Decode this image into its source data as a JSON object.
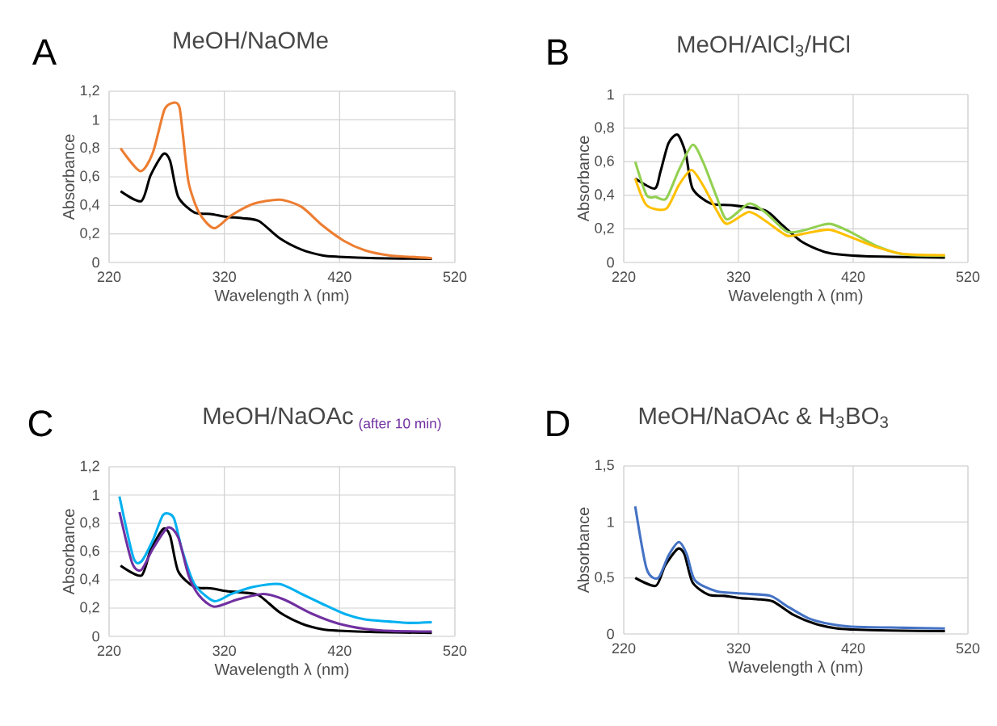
{
  "chart_data": [
    {
      "type": "line",
      "title": "MeOH/NaOMe",
      "annotations": [
        "A"
      ],
      "xlabel": "Wavelength λ (nm)",
      "ylabel": "Absorbance",
      "xlim": [
        220,
        520
      ],
      "xticks": [
        220,
        320,
        420,
        520
      ],
      "ylim": [
        0,
        1.2
      ],
      "yticks": [
        0,
        {
          "value": 0.2,
          "label": "0,2"
        },
        {
          "value": 0.4,
          "label": "0,4"
        },
        {
          "value": 0.6,
          "label": "0,6"
        },
        {
          "value": 0.8,
          "label": "0,8"
        },
        1,
        {
          "value": 1.2,
          "label": "1,2"
        }
      ],
      "grid": true,
      "series": [
        {
          "color": "#000000",
          "x": [
            230,
            248,
            256,
            267,
            273,
            280,
            294,
            308,
            322,
            336,
            350,
            368,
            387,
            405,
            419,
            452,
            500
          ],
          "values": [
            0.5,
            0.43,
            0.61,
            0.76,
            0.71,
            0.46,
            0.35,
            0.34,
            0.32,
            0.31,
            0.29,
            0.17,
            0.09,
            0.05,
            0.04,
            0.03,
            0.025
          ]
        },
        {
          "color": "#ed7d31",
          "x": [
            230,
            247,
            258,
            268,
            276,
            281,
            284,
            289,
            298,
            311,
            326,
            345,
            368,
            387,
            405,
            424,
            442,
            463,
            500
          ],
          "values": [
            0.8,
            0.64,
            0.77,
            1.07,
            1.12,
            1.09,
            0.9,
            0.56,
            0.35,
            0.24,
            0.33,
            0.41,
            0.44,
            0.39,
            0.26,
            0.15,
            0.085,
            0.05,
            0.03
          ]
        }
      ]
    },
    {
      "type": "line",
      "title": "MeOH/AlCl$_{3}$/HCl",
      "annotations": [
        "B"
      ],
      "xlabel": "Wavelength λ (nm)",
      "ylabel": "Absorbance",
      "xlim": [
        220,
        520
      ],
      "xticks": [
        220,
        320,
        420,
        520
      ],
      "ylim": [
        0,
        1
      ],
      "yticks": [
        0,
        {
          "value": 0.2,
          "label": "0,2"
        },
        {
          "value": 0.4,
          "label": "0,4"
        },
        {
          "value": 0.6,
          "label": "0,6"
        },
        {
          "value": 0.8,
          "label": "0,8"
        },
        1
      ],
      "grid": true,
      "series": [
        {
          "color": "#000000",
          "x": [
            230,
            247,
            252,
            259,
            267,
            274,
            280,
            296,
            315,
            343,
            357,
            376,
            399,
            430,
            500
          ],
          "values": [
            0.5,
            0.44,
            0.54,
            0.71,
            0.76,
            0.65,
            0.44,
            0.35,
            0.34,
            0.31,
            0.23,
            0.12,
            0.056,
            0.037,
            0.029
          ]
        },
        {
          "color": "#92d050",
          "x": [
            230,
            240,
            248,
            257,
            268,
            280,
            289,
            301,
            310,
            329,
            343,
            362,
            376,
            399,
            418,
            441,
            464,
            500
          ],
          "values": [
            0.6,
            0.4,
            0.39,
            0.38,
            0.55,
            0.7,
            0.6,
            0.39,
            0.256,
            0.35,
            0.3,
            0.184,
            0.19,
            0.23,
            0.18,
            0.096,
            0.048,
            0.04
          ]
        },
        {
          "color": "#ffc000",
          "x": [
            230,
            240,
            257,
            268,
            279,
            289,
            301,
            310,
            329,
            343,
            362,
            376,
            399,
            418,
            441,
            464,
            500
          ],
          "values": [
            0.5,
            0.34,
            0.32,
            0.46,
            0.55,
            0.46,
            0.31,
            0.23,
            0.3,
            0.25,
            0.16,
            0.17,
            0.195,
            0.15,
            0.09,
            0.05,
            0.043
          ]
        }
      ]
    },
    {
      "type": "line",
      "title": "MeOH/NaOAc",
      "subtitle": "(after 10 min)",
      "annotations": [
        "C"
      ],
      "xlabel": "Wavelength λ (nm)",
      "ylabel": "Absorbance",
      "xlim": [
        220,
        520
      ],
      "xticks": [
        220,
        320,
        420,
        520
      ],
      "ylim": [
        0,
        1.2
      ],
      "yticks": [
        0,
        {
          "value": 0.2,
          "label": "0,2"
        },
        {
          "value": 0.4,
          "label": "0,4"
        },
        {
          "value": 0.6,
          "label": "0,6"
        },
        {
          "value": 0.8,
          "label": "0,8"
        },
        1,
        {
          "value": 1.2,
          "label": "1,2"
        }
      ],
      "grid": true,
      "series": [
        {
          "color": "#000000",
          "x": [
            230,
            248,
            256,
            267,
            273,
            280,
            294,
            308,
            322,
            336,
            350,
            368,
            387,
            405,
            419,
            452,
            500
          ],
          "values": [
            0.5,
            0.43,
            0.61,
            0.76,
            0.71,
            0.46,
            0.35,
            0.34,
            0.32,
            0.31,
            0.29,
            0.17,
            0.09,
            0.05,
            0.04,
            0.03,
            0.025
          ]
        },
        {
          "color": "#00b0f0",
          "x": [
            229,
            241,
            248,
            258,
            267,
            276,
            283,
            294,
            311,
            326,
            345,
            368,
            387,
            405,
            424,
            442,
            463,
            480,
            500
          ],
          "values": [
            0.99,
            0.56,
            0.53,
            0.68,
            0.86,
            0.84,
            0.62,
            0.37,
            0.25,
            0.3,
            0.35,
            0.37,
            0.3,
            0.23,
            0.16,
            0.12,
            0.105,
            0.095,
            0.1
          ]
        },
        {
          "color": "#7030a0",
          "x": [
            229,
            240,
            248,
            258,
            271,
            280,
            289,
            298,
            311,
            331,
            354,
            372,
            396,
            419,
            442,
            466,
            500
          ],
          "values": [
            0.88,
            0.52,
            0.47,
            0.62,
            0.77,
            0.7,
            0.43,
            0.29,
            0.21,
            0.26,
            0.3,
            0.26,
            0.16,
            0.09,
            0.053,
            0.038,
            0.034
          ]
        }
      ]
    },
    {
      "type": "line",
      "title": "MeOH/NaOAc & H$_{3}$BO$_{3}$",
      "annotations": [
        "D"
      ],
      "xlabel": "Wavelength λ (nm)",
      "ylabel": "Absorbance",
      "xlim": [
        220,
        520
      ],
      "xticks": [
        220,
        320,
        420,
        520
      ],
      "ylim": [
        0,
        1.5
      ],
      "yticks": [
        0,
        {
          "value": 0.5,
          "label": "0,5"
        },
        1,
        {
          "value": 1.5,
          "label": "1,5"
        }
      ],
      "grid": true,
      "series": [
        {
          "color": "#000000",
          "x": [
            230,
            248,
            256,
            267,
            273,
            280,
            294,
            308,
            322,
            336,
            350,
            368,
            387,
            405,
            419,
            452,
            500
          ],
          "values": [
            0.5,
            0.43,
            0.61,
            0.76,
            0.71,
            0.46,
            0.35,
            0.34,
            0.32,
            0.31,
            0.29,
            0.17,
            0.09,
            0.05,
            0.04,
            0.03,
            0.025
          ]
        },
        {
          "color": "#4472c4",
          "x": [
            230,
            240,
            250,
            259,
            268,
            275,
            282,
            301,
            325,
            348,
            362,
            381,
            399,
            418,
            464,
            500
          ],
          "values": [
            1.14,
            0.58,
            0.5,
            0.7,
            0.82,
            0.71,
            0.48,
            0.38,
            0.36,
            0.34,
            0.25,
            0.14,
            0.09,
            0.065,
            0.055,
            0.048
          ]
        }
      ]
    }
  ]
}
